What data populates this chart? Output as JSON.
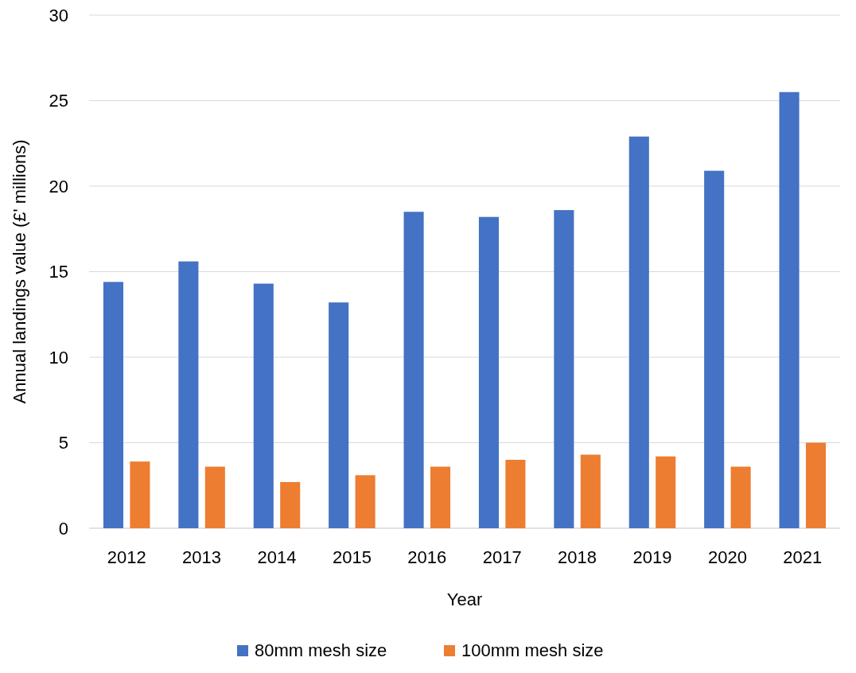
{
  "chart_data": {
    "type": "bar",
    "xlabel": "Year",
    "ylabel": "Annual landings value (£' millions)",
    "categories": [
      "2012",
      "2013",
      "2014",
      "2015",
      "2016",
      "2017",
      "2018",
      "2019",
      "2020",
      "2021"
    ],
    "series": [
      {
        "name": "80mm mesh size",
        "color": "#4472c4",
        "values": [
          14.4,
          15.6,
          14.3,
          13.2,
          18.5,
          18.2,
          18.6,
          22.9,
          20.9,
          25.5
        ]
      },
      {
        "name": "100mm mesh size",
        "color": "#ed7d31",
        "values": [
          3.9,
          3.6,
          2.7,
          3.1,
          3.6,
          4.0,
          4.3,
          4.2,
          3.6,
          5.0
        ]
      }
    ],
    "ylim": [
      0,
      30
    ],
    "yticks": [
      0,
      5,
      10,
      15,
      20,
      25,
      30
    ],
    "grid": "y",
    "legend": "bottom"
  }
}
